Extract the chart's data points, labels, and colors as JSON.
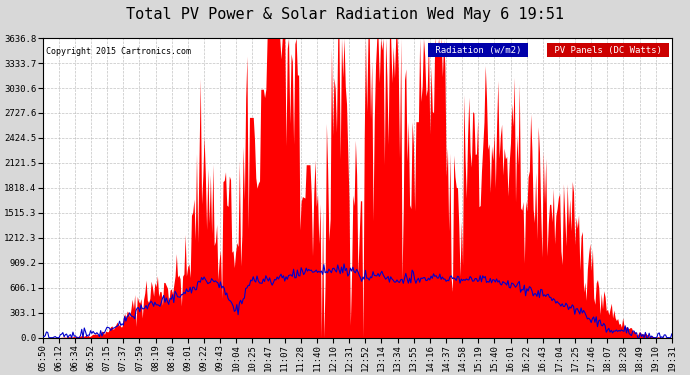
{
  "title": "Total PV Power & Solar Radiation Wed May 6 19:51",
  "copyright": "Copyright 2015 Cartronics.com",
  "legend_radiation": "Radiation (w/m2)",
  "legend_pv": "PV Panels (DC Watts)",
  "yticks": [
    0.0,
    303.1,
    606.1,
    909.2,
    1212.3,
    1515.3,
    1818.4,
    2121.5,
    2424.5,
    2727.6,
    3030.6,
    3333.7,
    3636.8
  ],
  "ymax": 3636.8,
  "bg_color": "#d8d8d8",
  "plot_bg": "#ffffff",
  "grid_color": "#aaaaaa",
  "pv_color": "#ff0000",
  "radiation_color": "#0000cc",
  "title_fontsize": 11,
  "tick_fontsize": 6.5,
  "legend_radiation_bg": "#0000aa",
  "legend_pv_bg": "#cc0000"
}
